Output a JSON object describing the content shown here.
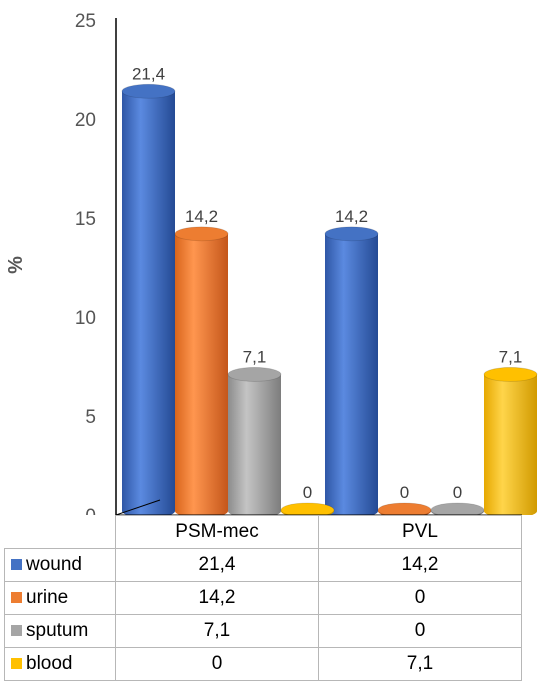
{
  "chart_data": {
    "type": "bar",
    "categories": [
      "PSM-mec",
      "PVL"
    ],
    "ylabel": "%",
    "ylim": [
      0,
      25
    ],
    "yticks": [
      0,
      5,
      10,
      15,
      20,
      25
    ],
    "ytick_labels": [
      "0",
      "5",
      "10",
      "15",
      "20",
      "25"
    ],
    "series": [
      {
        "name": "wound",
        "color": "#4472c4",
        "values": [
          21.4,
          14.2
        ],
        "labels": [
          "21,4",
          "14,2"
        ]
      },
      {
        "name": "urine",
        "color": "#ed7d31",
        "values": [
          14.2,
          0
        ],
        "labels": [
          "14,2",
          "0"
        ]
      },
      {
        "name": "sputum",
        "color": "#a5a5a5",
        "values": [
          7.1,
          0
        ],
        "labels": [
          "7,1",
          "0"
        ]
      },
      {
        "name": "blood",
        "color": "#ffc000",
        "values": [
          0,
          7.1
        ],
        "labels": [
          "0",
          "7,1"
        ]
      }
    ],
    "legend": "data-table"
  }
}
